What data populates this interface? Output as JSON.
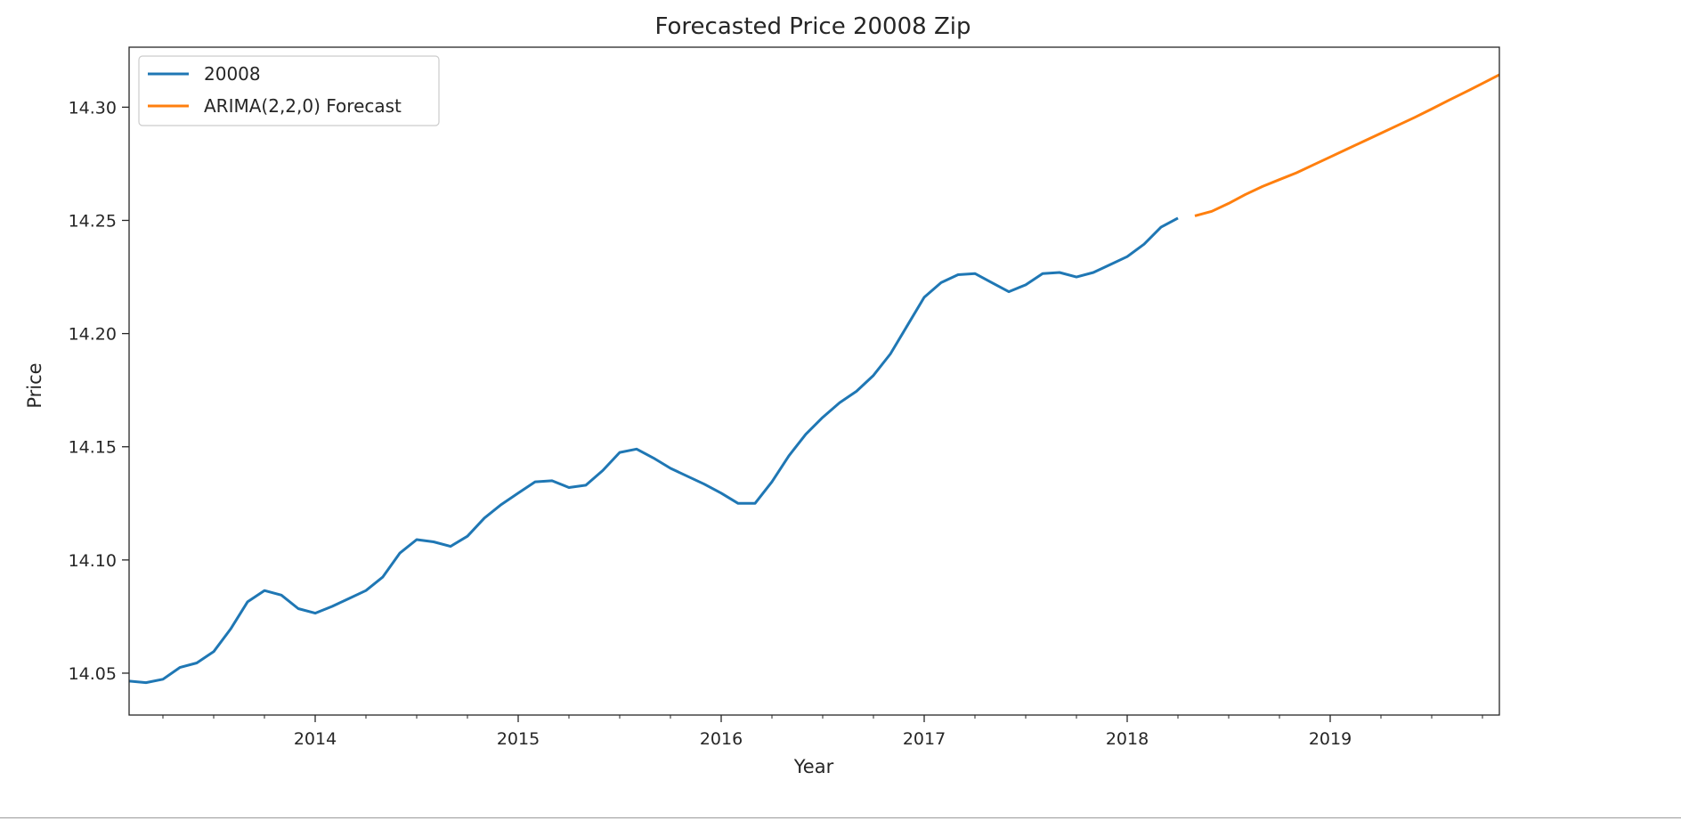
{
  "chart_data": {
    "type": "line",
    "title": "Forecasted Price 20008 Zip",
    "xlabel": "Year",
    "ylabel": "Price",
    "xlim": [
      "2013-02",
      "2019-11"
    ],
    "ylim": [
      14.0315,
      14.3265
    ],
    "x_ticks": [
      "2014",
      "2015",
      "2016",
      "2017",
      "2018",
      "2019"
    ],
    "y_ticks": [
      "14.05",
      "14.10",
      "14.15",
      "14.20",
      "14.25",
      "14.30"
    ],
    "grid": false,
    "legend_position": "upper left",
    "series": [
      {
        "name": "20008",
        "color": "#1f77b4",
        "x": [
          "2013-02",
          "2013-03",
          "2013-04",
          "2013-05",
          "2013-06",
          "2013-07",
          "2013-08",
          "2013-09",
          "2013-10",
          "2013-11",
          "2013-12",
          "2014-01",
          "2014-02",
          "2014-03",
          "2014-04",
          "2014-05",
          "2014-06",
          "2014-07",
          "2014-08",
          "2014-09",
          "2014-10",
          "2014-11",
          "2014-12",
          "2015-01",
          "2015-02",
          "2015-03",
          "2015-04",
          "2015-05",
          "2015-06",
          "2015-07",
          "2015-08",
          "2015-09",
          "2015-10",
          "2015-11",
          "2015-12",
          "2016-01",
          "2016-02",
          "2016-03",
          "2016-04",
          "2016-05",
          "2016-06",
          "2016-07",
          "2016-08",
          "2016-09",
          "2016-10",
          "2016-11",
          "2016-12",
          "2017-01",
          "2017-02",
          "2017-03",
          "2017-04",
          "2017-05",
          "2017-06",
          "2017-07",
          "2017-08",
          "2017-09",
          "2017-10",
          "2017-11",
          "2017-12",
          "2018-01",
          "2018-02",
          "2018-03",
          "2018-04"
        ],
        "values": [
          14.0465,
          14.0458,
          14.0473,
          14.0525,
          14.0545,
          14.0595,
          14.0695,
          14.0815,
          14.0865,
          14.0845,
          14.0785,
          14.0765,
          14.0795,
          14.083,
          14.0865,
          14.0925,
          14.103,
          14.109,
          14.108,
          14.106,
          14.1105,
          14.1185,
          14.1245,
          14.1295,
          14.1345,
          14.135,
          14.132,
          14.133,
          14.1395,
          14.1475,
          14.149,
          14.145,
          14.1405,
          14.137,
          14.1335,
          14.1295,
          14.125,
          14.125,
          14.1345,
          14.146,
          14.1555,
          14.163,
          14.1695,
          14.1745,
          14.1815,
          14.191,
          14.2035,
          14.216,
          14.2225,
          14.226,
          14.2265,
          14.2225,
          14.2185,
          14.2215,
          14.2265,
          14.227,
          14.225,
          14.227,
          14.2305,
          14.234,
          14.2395,
          14.247,
          14.251
        ]
      },
      {
        "name": "ARIMA(2,2,0) Forecast",
        "color": "#ff7f0e",
        "x": [
          "2018-05",
          "2018-06",
          "2018-07",
          "2018-08",
          "2018-09",
          "2018-10",
          "2018-11",
          "2018-12",
          "2019-01",
          "2019-02",
          "2019-03",
          "2019-04",
          "2019-05",
          "2019-06",
          "2019-07",
          "2019-08",
          "2019-09",
          "2019-10",
          "2019-11"
        ],
        "values": [
          14.252,
          14.254,
          14.2575,
          14.2615,
          14.265,
          14.268,
          14.271,
          14.2745,
          14.278,
          14.2815,
          14.285,
          14.2885,
          14.292,
          14.2955,
          14.2992,
          14.303,
          14.3067,
          14.3105,
          14.3143
        ]
      }
    ]
  }
}
